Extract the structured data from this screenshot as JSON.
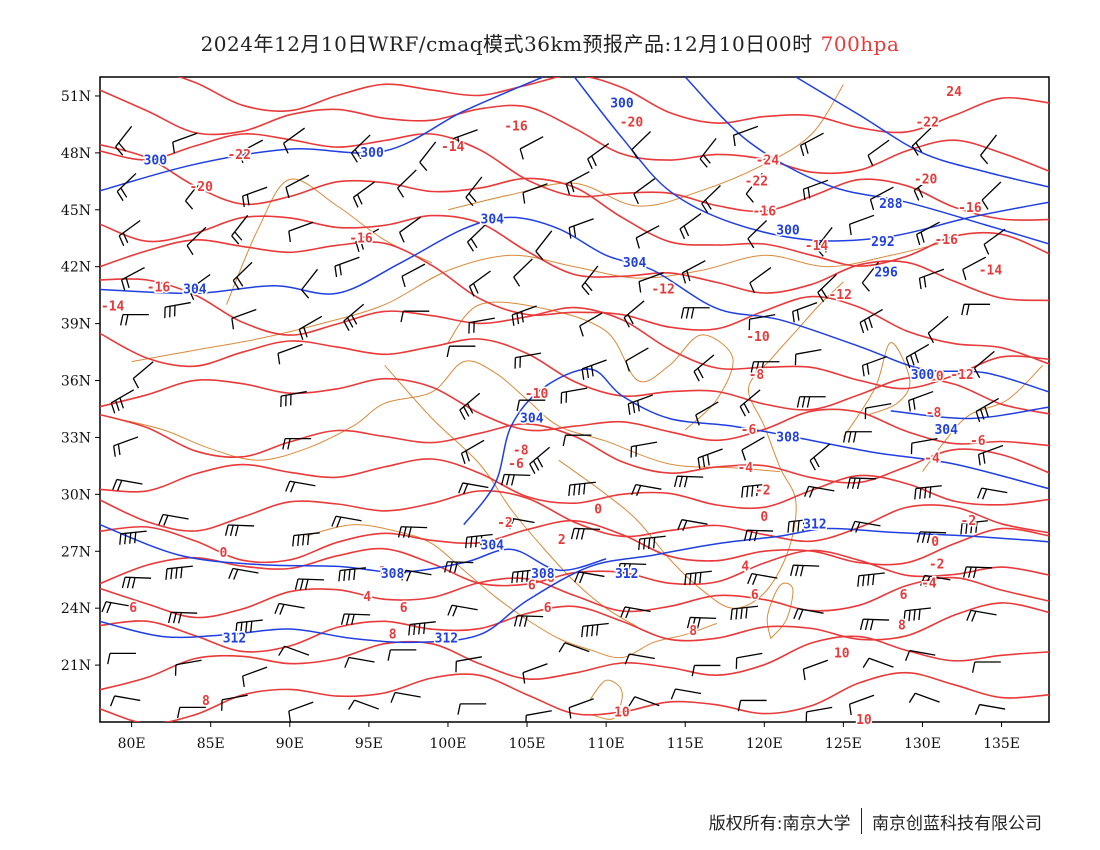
{
  "header": {
    "title": "2024年12月10日WRF/cmaq模式36km预报产品:12月10日00时",
    "level": "700hpa"
  },
  "axes": {
    "lat_labels": [
      "51N",
      "48N",
      "45N",
      "42N",
      "39N",
      "36N",
      "33N",
      "30N",
      "27N",
      "24N",
      "21N"
    ],
    "lon_labels": [
      "80E",
      "85E",
      "90E",
      "95E",
      "100E",
      "105E",
      "110E",
      "115E",
      "120E",
      "125E",
      "130E",
      "135E"
    ]
  },
  "colors": {
    "temperature": "#e83a3a",
    "height": "#1f3fe0",
    "boundary": "#d98a3a",
    "wind": "#000000"
  },
  "height_labels": [
    {
      "text": "300",
      "lon": 111,
      "lat": 50.6
    },
    {
      "text": "300",
      "lon": 81.5,
      "lat": 47.6
    },
    {
      "text": "300",
      "lon": 95.2,
      "lat": 48.0
    },
    {
      "text": "304",
      "lon": 102.8,
      "lat": 44.5
    },
    {
      "text": "304",
      "lon": 111.8,
      "lat": 42.2
    },
    {
      "text": "300",
      "lon": 121.5,
      "lat": 43.9
    },
    {
      "text": "288",
      "lon": 128,
      "lat": 45.3
    },
    {
      "text": "292",
      "lon": 127.5,
      "lat": 43.3
    },
    {
      "text": "296",
      "lon": 127.7,
      "lat": 41.7
    },
    {
      "text": "304",
      "lon": 84,
      "lat": 40.8
    },
    {
      "text": "300",
      "lon": 130,
      "lat": 36.3
    },
    {
      "text": "304",
      "lon": 105.3,
      "lat": 34.0
    },
    {
      "text": "304",
      "lon": 131.5,
      "lat": 33.4
    },
    {
      "text": "308",
      "lon": 121.5,
      "lat": 33.0
    },
    {
      "text": "312",
      "lon": 123.2,
      "lat": 28.4
    },
    {
      "text": "304",
      "lon": 102.8,
      "lat": 27.3
    },
    {
      "text": "308",
      "lon": 96.5,
      "lat": 25.8
    },
    {
      "text": "308",
      "lon": 106,
      "lat": 25.8
    },
    {
      "text": "312",
      "lon": 111.3,
      "lat": 25.8
    },
    {
      "text": "312",
      "lon": 86.5,
      "lat": 22.4
    },
    {
      "text": "312",
      "lon": 99.9,
      "lat": 22.4
    }
  ],
  "temperature_labels": [
    {
      "text": "24",
      "lon": 132,
      "lat": 51.2
    },
    {
      "text": "-22",
      "lon": 130.3,
      "lat": 49.6
    },
    {
      "text": "-20",
      "lon": 111.6,
      "lat": 49.6
    },
    {
      "text": "-16",
      "lon": 104.3,
      "lat": 49.4
    },
    {
      "text": "-14",
      "lon": 100.3,
      "lat": 48.3
    },
    {
      "text": "-22",
      "lon": 86.8,
      "lat": 47.9
    },
    {
      "text": "-24",
      "lon": 120.2,
      "lat": 47.6
    },
    {
      "text": "-20",
      "lon": 84.4,
      "lat": 46.2
    },
    {
      "text": "-22",
      "lon": 119.5,
      "lat": 46.5
    },
    {
      "text": "-20",
      "lon": 130.2,
      "lat": 46.6
    },
    {
      "text": "-16",
      "lon": 120,
      "lat": 44.9
    },
    {
      "text": "-16",
      "lon": 133,
      "lat": 45.1
    },
    {
      "text": "-16",
      "lon": 94.5,
      "lat": 43.5
    },
    {
      "text": "-16",
      "lon": 131.5,
      "lat": 43.4
    },
    {
      "text": "-14",
      "lon": 123.3,
      "lat": 43.1
    },
    {
      "text": "-14",
      "lon": 134.3,
      "lat": 41.8
    },
    {
      "text": "-16",
      "lon": 81.7,
      "lat": 40.9
    },
    {
      "text": "-12",
      "lon": 113.6,
      "lat": 40.8
    },
    {
      "text": "-12",
      "lon": 124.8,
      "lat": 40.5
    },
    {
      "text": "-14",
      "lon": 78.8,
      "lat": 39.9
    },
    {
      "text": "-10",
      "lon": 119.6,
      "lat": 38.3
    },
    {
      "text": "-12",
      "lon": 132.5,
      "lat": 36.3
    },
    {
      "text": "-8",
      "lon": 119.5,
      "lat": 36.3
    },
    {
      "text": "-10",
      "lon": 130.6,
      "lat": 36.2
    },
    {
      "text": "-10",
      "lon": 105.6,
      "lat": 35.3
    },
    {
      "text": "-8",
      "lon": 130.7,
      "lat": 34.3
    },
    {
      "text": "-6",
      "lon": 119,
      "lat": 33.4
    },
    {
      "text": "-6",
      "lon": 133.5,
      "lat": 32.8
    },
    {
      "text": "-8",
      "lon": 104.6,
      "lat": 32.3
    },
    {
      "text": "-6",
      "lon": 104.3,
      "lat": 31.6
    },
    {
      "text": "-4",
      "lon": 130.6,
      "lat": 31.9
    },
    {
      "text": "-4",
      "lon": 118.8,
      "lat": 31.4
    },
    {
      "text": "-2",
      "lon": 119.9,
      "lat": 30.2
    },
    {
      "text": "0",
      "lon": 109.5,
      "lat": 29.2
    },
    {
      "text": "0",
      "lon": 120,
      "lat": 28.8
    },
    {
      "text": "-2",
      "lon": 103.6,
      "lat": 28.5
    },
    {
      "text": "-2",
      "lon": 132.9,
      "lat": 28.6
    },
    {
      "text": "2",
      "lon": 107.2,
      "lat": 27.6
    },
    {
      "text": "0",
      "lon": 130.8,
      "lat": 27.5
    },
    {
      "text": "0",
      "lon": 85.8,
      "lat": 26.9
    },
    {
      "text": "2",
      "lon": 95.9,
      "lat": 25.9
    },
    {
      "text": "-2",
      "lon": 130.9,
      "lat": 26.3
    },
    {
      "text": "6",
      "lon": 106.5,
      "lat": 25.6
    },
    {
      "text": "4",
      "lon": 118.8,
      "lat": 26.2
    },
    {
      "text": "4",
      "lon": 94.9,
      "lat": 24.6
    },
    {
      "text": "-4",
      "lon": 130.4,
      "lat": 25.3
    },
    {
      "text": "6",
      "lon": 105.3,
      "lat": 25.2
    },
    {
      "text": "6",
      "lon": 80.1,
      "lat": 24.0
    },
    {
      "text": "6",
      "lon": 97.2,
      "lat": 24.0
    },
    {
      "text": "6",
      "lon": 106.3,
      "lat": 24.0
    },
    {
      "text": "6",
      "lon": 119.4,
      "lat": 24.7
    },
    {
      "text": "6",
      "lon": 128.8,
      "lat": 24.7
    },
    {
      "text": "8",
      "lon": 96.5,
      "lat": 22.6
    },
    {
      "text": "8",
      "lon": 115.5,
      "lat": 22.8
    },
    {
      "text": "8",
      "lon": 128.7,
      "lat": 23.1
    },
    {
      "text": "10",
      "lon": 124.9,
      "lat": 21.6
    },
    {
      "text": "8",
      "lon": 84.7,
      "lat": 19.1
    },
    {
      "text": "10",
      "lon": 111,
      "lat": 18.5
    },
    {
      "text": "10",
      "lon": 126.3,
      "lat": 18.1
    }
  ],
  "footer": {
    "left": "版权所有:南京大学",
    "right": "南京创蓝科技有限公司"
  }
}
